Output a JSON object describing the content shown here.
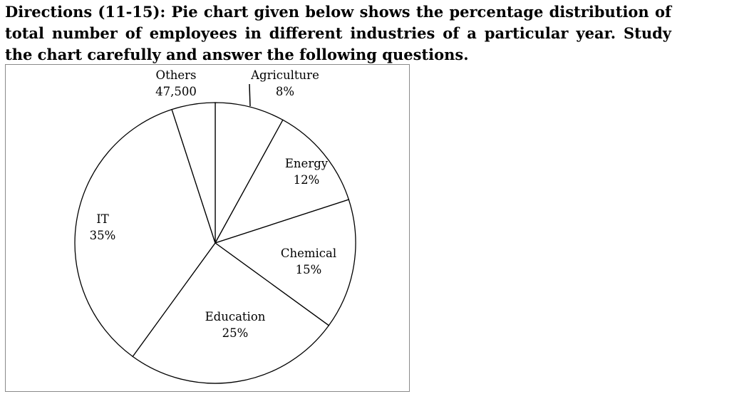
{
  "directions": "Directions (11-15): Pie chart given below shows the percentage distribution of total number of employees in different industries of a particular year. Study the chart carefully and answer the following questions.",
  "chart_data": {
    "type": "pie",
    "title": "",
    "slices": [
      {
        "name": "Agriculture",
        "value": 8,
        "label": "8%"
      },
      {
        "name": "Energy",
        "value": 12,
        "label": "12%"
      },
      {
        "name": "Chemical",
        "value": 15,
        "label": "15%"
      },
      {
        "name": "Education",
        "value": 25,
        "label": "25%"
      },
      {
        "name": "IT",
        "value": 35,
        "label": "35%"
      },
      {
        "name": "Others",
        "value": 5,
        "label": "47,500"
      }
    ],
    "start_angle_deg": 0,
    "direction": "clockwise",
    "fill_color": "#ffffff",
    "stroke_color": "#000000"
  }
}
